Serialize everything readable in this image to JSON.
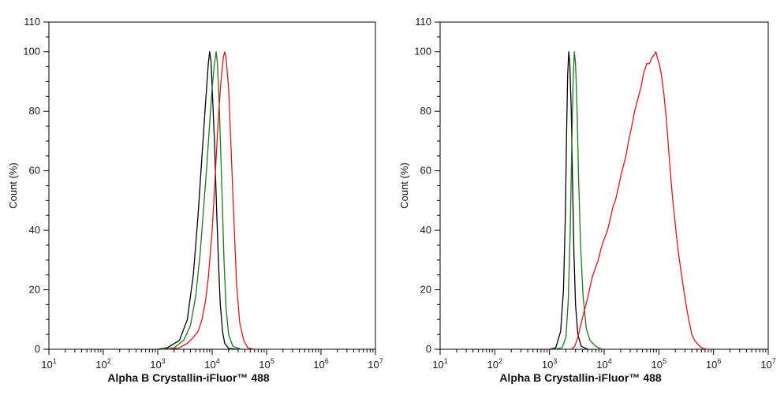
{
  "chart_data": [
    {
      "type": "line",
      "xscale": "log",
      "xlabel": "Alpha B Crystallin-iFluor™ 488",
      "ylabel": "Count  (%)",
      "xlim": [
        10,
        10000000
      ],
      "ylim": [
        0,
        110
      ],
      "x_tick_labels": [
        {
          "base": "10",
          "exp": "1"
        },
        {
          "base": "10",
          "exp": "2"
        },
        {
          "base": "10",
          "exp": "3"
        },
        {
          "base": "10",
          "exp": "4"
        },
        {
          "base": "10",
          "exp": "5"
        },
        {
          "base": "10",
          "exp": "6"
        },
        {
          "base": "10",
          "exp": "7"
        }
      ],
      "y_tick_labels": [
        "0",
        "20",
        "40",
        "60",
        "80",
        "100",
        "110"
      ],
      "series": [
        {
          "name": "black",
          "color": "#000000",
          "points": [
            [
              1000,
              0
            ],
            [
              1500,
              0.5
            ],
            [
              2500,
              3
            ],
            [
              3500,
              10
            ],
            [
              4500,
              25
            ],
            [
              5500,
              45
            ],
            [
              6500,
              65
            ],
            [
              7500,
              82
            ],
            [
              8500,
              96
            ],
            [
              9000,
              100
            ],
            [
              9500,
              97
            ],
            [
              10000,
              88
            ],
            [
              11000,
              70
            ],
            [
              12000,
              48
            ],
            [
              13000,
              30
            ],
            [
              14000,
              16
            ],
            [
              15500,
              6
            ],
            [
              17000,
              2
            ],
            [
              20000,
              0.3
            ],
            [
              30000,
              0
            ]
          ]
        },
        {
          "name": "green",
          "color": "#1a7a1a",
          "points": [
            [
              1200,
              0
            ],
            [
              2000,
              0.5
            ],
            [
              3000,
              3
            ],
            [
              4000,
              8
            ],
            [
              5000,
              18
            ],
            [
              6000,
              32
            ],
            [
              7000,
              48
            ],
            [
              8000,
              62
            ],
            [
              9000,
              76
            ],
            [
              10000,
              88
            ],
            [
              11000,
              96
            ],
            [
              11800,
              100
            ],
            [
              12500,
              96
            ],
            [
              13500,
              82
            ],
            [
              15000,
              55
            ],
            [
              16500,
              30
            ],
            [
              18000,
              14
            ],
            [
              20000,
              5
            ],
            [
              24000,
              1
            ],
            [
              35000,
              0
            ]
          ]
        },
        {
          "name": "red",
          "color": "#e8111a",
          "points": [
            [
              1500,
              0
            ],
            [
              2500,
              0.5
            ],
            [
              3500,
              2
            ],
            [
              4500,
              4
            ],
            [
              5500,
              6
            ],
            [
              6500,
              10
            ],
            [
              7500,
              16
            ],
            [
              8500,
              24
            ],
            [
              10000,
              40
            ],
            [
              11500,
              60
            ],
            [
              13000,
              78
            ],
            [
              14500,
              90
            ],
            [
              16000,
              98
            ],
            [
              17000,
              100
            ],
            [
              18000,
              98
            ],
            [
              20000,
              88
            ],
            [
              22000,
              70
            ],
            [
              25000,
              44
            ],
            [
              28000,
              22
            ],
            [
              32000,
              9
            ],
            [
              38000,
              3
            ],
            [
              45000,
              0.5
            ],
            [
              60000,
              0
            ]
          ]
        }
      ]
    },
    {
      "type": "line",
      "xscale": "log",
      "xlabel": "Alpha B Crystallin-iFluor™ 488",
      "ylabel": "Count  (%)",
      "xlim": [
        10,
        10000000
      ],
      "ylim": [
        0,
        110
      ],
      "x_tick_labels": [
        {
          "base": "10",
          "exp": "1"
        },
        {
          "base": "10",
          "exp": "2"
        },
        {
          "base": "10",
          "exp": "3"
        },
        {
          "base": "10",
          "exp": "4"
        },
        {
          "base": "10",
          "exp": "5"
        },
        {
          "base": "10",
          "exp": "6"
        },
        {
          "base": "10",
          "exp": "7"
        }
      ],
      "y_tick_labels": [
        "0",
        "20",
        "40",
        "60",
        "80",
        "100",
        "110"
      ],
      "series": [
        {
          "name": "black",
          "color": "#000000",
          "points": [
            [
              1000,
              0
            ],
            [
              1300,
              0.5
            ],
            [
              1600,
              6
            ],
            [
              1800,
              20
            ],
            [
              1950,
              45
            ],
            [
              2050,
              72
            ],
            [
              2150,
              92
            ],
            [
              2250,
              100
            ],
            [
              2350,
              96
            ],
            [
              2500,
              80
            ],
            [
              2650,
              55
            ],
            [
              2800,
              32
            ],
            [
              3000,
              15
            ],
            [
              3300,
              5
            ],
            [
              3800,
              1
            ],
            [
              5000,
              0
            ]
          ]
        },
        {
          "name": "green",
          "color": "#1a7a1a",
          "points": [
            [
              1200,
              0
            ],
            [
              1700,
              0.5
            ],
            [
              2000,
              4
            ],
            [
              2200,
              16
            ],
            [
              2400,
              40
            ],
            [
              2550,
              68
            ],
            [
              2700,
              90
            ],
            [
              2850,
              100
            ],
            [
              3000,
              96
            ],
            [
              3200,
              80
            ],
            [
              3400,
              58
            ],
            [
              3700,
              35
            ],
            [
              4100,
              18
            ],
            [
              4700,
              7
            ],
            [
              5500,
              3
            ],
            [
              7000,
              1
            ],
            [
              9000,
              0
            ]
          ]
        },
        {
          "name": "red",
          "color": "#e8111a",
          "points": [
            [
              2500,
              0
            ],
            [
              2900,
              1
            ],
            [
              3300,
              4
            ],
            [
              3700,
              8
            ],
            [
              4200,
              12
            ],
            [
              4800,
              16
            ],
            [
              5400,
              20
            ],
            [
              6000,
              24
            ],
            [
              6800,
              27
            ],
            [
              7800,
              30
            ],
            [
              8800,
              34
            ],
            [
              10000,
              37
            ],
            [
              11500,
              40
            ],
            [
              13000,
              44
            ],
            [
              14500,
              48
            ],
            [
              16000,
              50
            ],
            [
              18000,
              54
            ],
            [
              20000,
              58
            ],
            [
              22000,
              61
            ],
            [
              25000,
              65
            ],
            [
              28000,
              70
            ],
            [
              32000,
              75
            ],
            [
              36000,
              80
            ],
            [
              41000,
              84
            ],
            [
              47000,
              88
            ],
            [
              53000,
              93
            ],
            [
              60000,
              96
            ],
            [
              67000,
              96
            ],
            [
              74000,
              98
            ],
            [
              82000,
              99
            ],
            [
              88000,
              100
            ],
            [
              94000,
              98
            ],
            [
              102000,
              96
            ],
            [
              112000,
              92
            ],
            [
              123000,
              86
            ],
            [
              136000,
              78
            ],
            [
              150000,
              68
            ],
            [
              165000,
              58
            ],
            [
              180000,
              50
            ],
            [
              195000,
              44
            ],
            [
              210000,
              38
            ],
            [
              230000,
              32
            ],
            [
              255000,
              26
            ],
            [
              285000,
              20
            ],
            [
              320000,
              14
            ],
            [
              360000,
              9
            ],
            [
              400000,
              5
            ],
            [
              450000,
              3
            ],
            [
              500000,
              2
            ],
            [
              560000,
              1
            ],
            [
              640000,
              0.3
            ],
            [
              800000,
              0
            ]
          ]
        }
      ]
    }
  ]
}
